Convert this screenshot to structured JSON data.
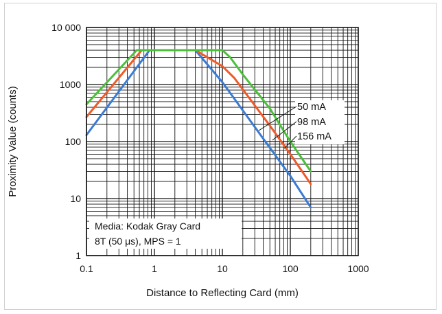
{
  "chart_data": {
    "type": "line",
    "title": "",
    "xlabel": "Distance to Reflecting Card (mm)",
    "ylabel": "Proximity Value (counts)",
    "xscale": "log",
    "yscale": "log",
    "xlim": [
      0.1,
      1000
    ],
    "ylim": [
      1,
      10000
    ],
    "grid": true,
    "x_ticks": [
      0.1,
      1,
      10,
      100,
      1000
    ],
    "x_tick_labels": [
      "0.1",
      "1",
      "10",
      "100",
      "1000"
    ],
    "y_ticks": [
      1,
      10,
      100,
      1000,
      10000
    ],
    "y_tick_labels": [
      "1",
      "10",
      "100",
      "1000",
      "10 000"
    ],
    "annotation": [
      "Media: Kodak Gray Card",
      "8T (50 μs), MPS = 1"
    ],
    "series": [
      {
        "name": "50 mA",
        "color": "#3a7bd5",
        "points": [
          [
            0.1,
            130
          ],
          [
            0.85,
            4000
          ],
          [
            4,
            4000
          ],
          [
            10,
            1100
          ],
          [
            30,
            180
          ],
          [
            100,
            25
          ],
          [
            200,
            7
          ]
        ]
      },
      {
        "name": "98 mA",
        "color": "#f05a28",
        "points": [
          [
            0.1,
            270
          ],
          [
            0.65,
            4000
          ],
          [
            4,
            4000
          ],
          [
            10,
            2100
          ],
          [
            15,
            1300
          ],
          [
            50,
            190
          ],
          [
            100,
            60
          ],
          [
            200,
            18
          ]
        ]
      },
      {
        "name": "156 mA",
        "color": "#4cbf3a",
        "points": [
          [
            0.1,
            450
          ],
          [
            0.55,
            4000
          ],
          [
            10,
            4000
          ],
          [
            13,
            3000
          ],
          [
            20,
            1500
          ],
          [
            50,
            380
          ],
          [
            100,
            100
          ],
          [
            200,
            30
          ]
        ]
      }
    ]
  }
}
